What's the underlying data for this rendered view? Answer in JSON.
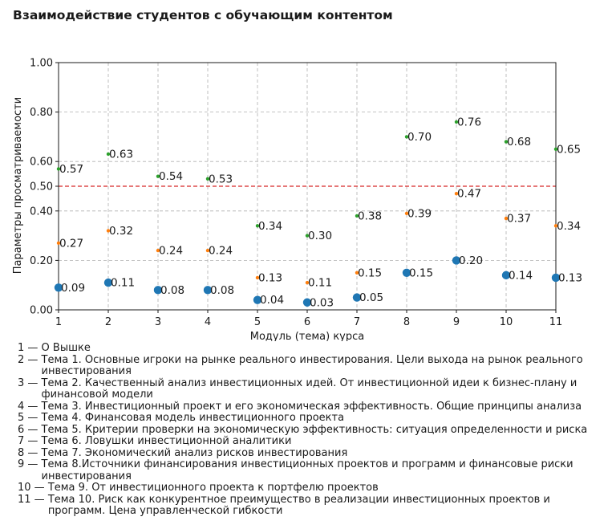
{
  "title": "Взаимодействие студентов с обучающим контентом",
  "chart_data": {
    "type": "scatter",
    "title": "Взаимодействие студентов с обучающим контентом",
    "xlabel": "Модуль (тема) курса",
    "ylabel": "Параметры просматриваемости",
    "x": [
      1,
      2,
      3,
      4,
      5,
      6,
      7,
      8,
      9,
      10,
      11
    ],
    "xlim": [
      1,
      11
    ],
    "ylim": [
      0,
      1.0
    ],
    "x_ticks": [
      "1",
      "2",
      "3",
      "4",
      "5",
      "6",
      "7",
      "8",
      "9",
      "10",
      "11"
    ],
    "y_ticks": [
      {
        "value": 0.0,
        "label": "0.00"
      },
      {
        "value": 0.2,
        "label": "0.20"
      },
      {
        "value": 0.4,
        "label": "0.40"
      },
      {
        "value": 0.5,
        "label": "0.50"
      },
      {
        "value": 0.6,
        "label": "0.60"
      },
      {
        "value": 0.8,
        "label": "0.80"
      },
      {
        "value": 1.0,
        "label": "1.00"
      }
    ],
    "grid": true,
    "reference_line": {
      "y": 0.5,
      "color": "#d62728",
      "style": "dashed"
    },
    "series": [
      {
        "color": "#2ca02c",
        "marker_size": "small",
        "values": [
          0.57,
          0.63,
          0.54,
          0.53,
          0.34,
          0.3,
          0.38,
          0.7,
          0.76,
          0.68,
          0.65
        ],
        "labels": [
          "0.57",
          "0.63",
          "0.54",
          "0.53",
          "0.34",
          "0.30",
          "0.38",
          "0.70",
          "0.76",
          "0.68",
          "0.65"
        ]
      },
      {
        "color": "#ff7f0e",
        "marker_size": "small",
        "values": [
          0.27,
          0.32,
          0.24,
          0.24,
          0.13,
          0.11,
          0.15,
          0.39,
          0.47,
          0.37,
          0.34
        ],
        "labels": [
          "0.27",
          "0.32",
          "0.24",
          "0.24",
          "0.13",
          "0.11",
          "0.15",
          "0.39",
          "0.47",
          "0.37",
          "0.34"
        ]
      },
      {
        "color": "#1f77b4",
        "marker_size": "large",
        "values": [
          0.09,
          0.11,
          0.08,
          0.08,
          0.04,
          0.03,
          0.05,
          0.15,
          0.2,
          0.14,
          0.13
        ],
        "labels": [
          "0.09",
          "0.11",
          "0.08",
          "0.08",
          "0.04",
          "0.03",
          "0.05",
          "0.15",
          "0.20",
          "0.14",
          "0.13"
        ]
      }
    ]
  },
  "legend": [
    {
      "num": "1 — ",
      "text": "О Вышке"
    },
    {
      "num": "2 — ",
      "text": "Тема 1. Основные игроки на рынке реального инвестирования. Цели выхода на рынок реального инвестирования"
    },
    {
      "num": "3 — ",
      "text": "Тема 2. Качественный анализ инвестиционных идей. От инвестиционной идеи к бизнес-плану и финансовой модели"
    },
    {
      "num": "4 — ",
      "text": "Тема 3. Инвестиционный проект и его экономическая эффективность. Общие принципы анализа"
    },
    {
      "num": "5 — ",
      "text": "Тема 4. Финансовая модель инвестиционного проекта"
    },
    {
      "num": "6 — ",
      "text": "Тема 5. Критерии проверки на экономическую эффективность: ситуация определенности и риска"
    },
    {
      "num": "7 — ",
      "text": "Тема 6. Ловушки инвестиционной аналитики"
    },
    {
      "num": "8 — ",
      "text": "Тема 7. Экономический анализ рисков инвестирования"
    },
    {
      "num": "9 — ",
      "text": "Тема 8.Источники финансирования инвестиционных проектов и программ и финансовые риски инвестирования"
    },
    {
      "num": "10 — ",
      "text": "Тема 9. От инвестиционного проекта к портфелю проектов"
    },
    {
      "num": "11 — ",
      "text": "Тема 10. Риск как конкурентное преимущество в реализации инвестиционных проектов и программ. Цена управленческой гибкости"
    }
  ]
}
